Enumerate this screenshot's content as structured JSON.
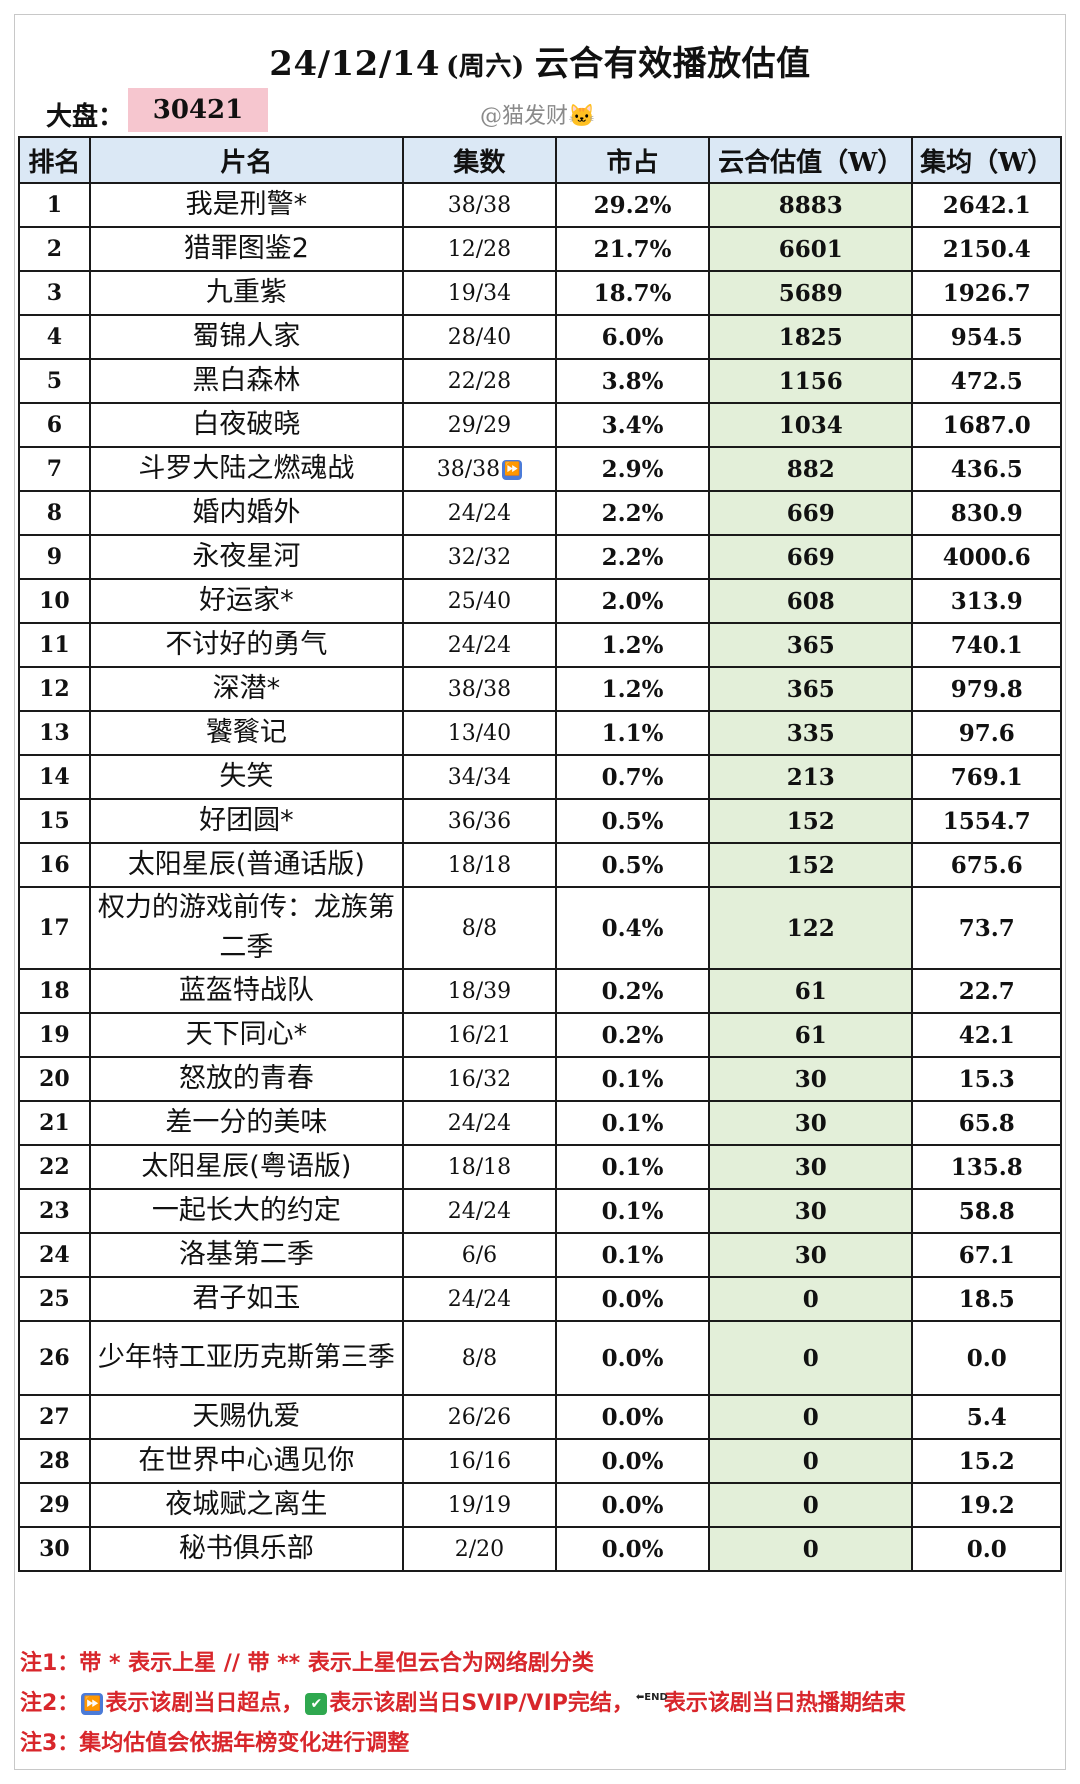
{
  "header": {
    "date": "24/12/14",
    "weekday": "(周六)",
    "title": "云合有效播放估值",
    "dapan_label": "大盘：",
    "dapan_value": "30421",
    "author": "@猫发财🐱"
  },
  "table": {
    "columns": [
      "排名",
      "片名",
      "集数",
      "市占",
      "云合估值（W）",
      "集均（W）"
    ],
    "rows": [
      {
        "rank": "1",
        "name": "我是刑警*",
        "episodes": "38/38",
        "share": "29.2%",
        "estimate": "8883",
        "avg": "2642.1"
      },
      {
        "rank": "2",
        "name": "猎罪图鉴2",
        "episodes": "12/28",
        "share": "21.7%",
        "estimate": "6601",
        "avg": "2150.4"
      },
      {
        "rank": "3",
        "name": "九重紫",
        "episodes": "19/34",
        "share": "18.7%",
        "estimate": "5689",
        "avg": "1926.7"
      },
      {
        "rank": "4",
        "name": "蜀锦人家",
        "episodes": "28/40",
        "share": "6.0%",
        "estimate": "1825",
        "avg": "954.5"
      },
      {
        "rank": "5",
        "name": "黑白森林",
        "episodes": "22/28",
        "share": "3.8%",
        "estimate": "1156",
        "avg": "472.5"
      },
      {
        "rank": "6",
        "name": "白夜破晓",
        "episodes": "29/29",
        "share": "3.4%",
        "estimate": "1034",
        "avg": "1687.0"
      },
      {
        "rank": "7",
        "name": "斗罗大陆之燃魂战",
        "episodes": "38/38",
        "share": "2.9%",
        "estimate": "882",
        "avg": "436.5",
        "badge": "⏩"
      },
      {
        "rank": "8",
        "name": "婚内婚外",
        "episodes": "24/24",
        "share": "2.2%",
        "estimate": "669",
        "avg": "830.9"
      },
      {
        "rank": "9",
        "name": "永夜星河",
        "episodes": "32/32",
        "share": "2.2%",
        "estimate": "669",
        "avg": "4000.6"
      },
      {
        "rank": "10",
        "name": "好运家*",
        "episodes": "25/40",
        "share": "2.0%",
        "estimate": "608",
        "avg": "313.9"
      },
      {
        "rank": "11",
        "name": "不讨好的勇气",
        "episodes": "24/24",
        "share": "1.2%",
        "estimate": "365",
        "avg": "740.1"
      },
      {
        "rank": "12",
        "name": "深潜*",
        "episodes": "38/38",
        "share": "1.2%",
        "estimate": "365",
        "avg": "979.8"
      },
      {
        "rank": "13",
        "name": "饕餮记",
        "episodes": "13/40",
        "share": "1.1%",
        "estimate": "335",
        "avg": "97.6"
      },
      {
        "rank": "14",
        "name": "失笑",
        "episodes": "34/34",
        "share": "0.7%",
        "estimate": "213",
        "avg": "769.1"
      },
      {
        "rank": "15",
        "name": "好团圆*",
        "episodes": "36/36",
        "share": "0.5%",
        "estimate": "152",
        "avg": "1554.7"
      },
      {
        "rank": "16",
        "name": "太阳星辰(普通话版)",
        "episodes": "18/18",
        "share": "0.5%",
        "estimate": "152",
        "avg": "675.6"
      },
      {
        "rank": "17",
        "name": "权力的游戏前传：龙族第二季",
        "episodes": "8/8",
        "share": "0.4%",
        "estimate": "122",
        "avg": "73.7",
        "tall": true
      },
      {
        "rank": "18",
        "name": "蓝盔特战队",
        "episodes": "18/39",
        "share": "0.2%",
        "estimate": "61",
        "avg": "22.7"
      },
      {
        "rank": "19",
        "name": "天下同心*",
        "episodes": "16/21",
        "share": "0.2%",
        "estimate": "61",
        "avg": "42.1"
      },
      {
        "rank": "20",
        "name": "怒放的青春",
        "episodes": "16/32",
        "share": "0.1%",
        "estimate": "30",
        "avg": "15.3"
      },
      {
        "rank": "21",
        "name": "差一分的美味",
        "episodes": "24/24",
        "share": "0.1%",
        "estimate": "30",
        "avg": "65.8"
      },
      {
        "rank": "22",
        "name": "太阳星辰(粤语版)",
        "episodes": "18/18",
        "share": "0.1%",
        "estimate": "30",
        "avg": "135.8"
      },
      {
        "rank": "23",
        "name": "一起长大的约定",
        "episodes": "24/24",
        "share": "0.1%",
        "estimate": "30",
        "avg": "58.8"
      },
      {
        "rank": "24",
        "name": "洛基第二季",
        "episodes": "6/6",
        "share": "0.1%",
        "estimate": "30",
        "avg": "67.1"
      },
      {
        "rank": "25",
        "name": "君子如玉",
        "episodes": "24/24",
        "share": "0.0%",
        "estimate": "0",
        "avg": "18.5"
      },
      {
        "rank": "26",
        "name": "少年特工亚历克斯第三季",
        "episodes": "8/8",
        "share": "0.0%",
        "estimate": "0",
        "avg": "0.0",
        "tall": true
      },
      {
        "rank": "27",
        "name": "天赐仇爱",
        "episodes": "26/26",
        "share": "0.0%",
        "estimate": "0",
        "avg": "5.4"
      },
      {
        "rank": "28",
        "name": "在世界中心遇见你",
        "episodes": "16/16",
        "share": "0.0%",
        "estimate": "0",
        "avg": "15.2"
      },
      {
        "rank": "29",
        "name": "夜城赋之离生",
        "episodes": "19/19",
        "share": "0.0%",
        "estimate": "0",
        "avg": "19.2"
      },
      {
        "rank": "30",
        "name": "秘书俱乐部",
        "episodes": "2/20",
        "share": "0.0%",
        "estimate": "0",
        "avg": "0.0"
      }
    ]
  },
  "notes": {
    "note1": "注1：带 * 表示上星 // 带 ** 表示上星但云合为网络剧分类",
    "note2_prefix": "注2：",
    "note2_a": "表示该剧当日超点，",
    "note2_b": "表示该剧当日SVIP/VIP完结，",
    "note2_c": "表示该剧当日热播期结束",
    "note3": "注3：集均估值会依据年榜变化进行调整",
    "icon_superpoint": "⏩",
    "icon_complete": "✔",
    "icon_end": "⬅END"
  },
  "colors": {
    "header_fill": "#dbe8f5",
    "estimate_fill": "#e3efd9",
    "dapan_fill": "#f6c6cf",
    "note_text": "#d8262b"
  }
}
